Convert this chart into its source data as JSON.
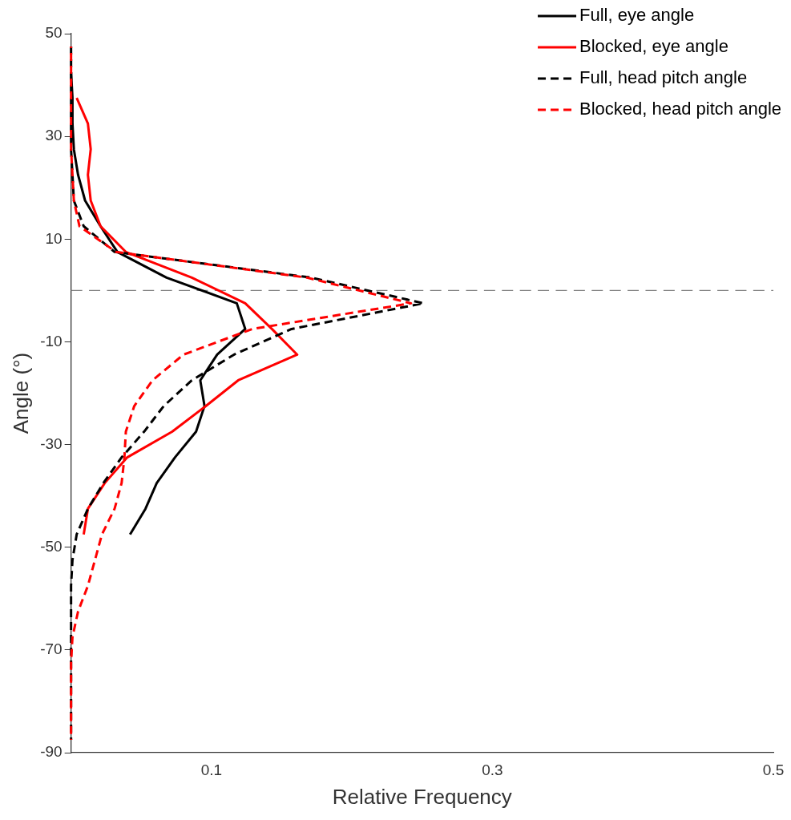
{
  "chart_data": {
    "type": "line",
    "xlabel": "Relative Frequency",
    "ylabel": "Angle (°)",
    "xlim": [
      0,
      0.5
    ],
    "xticks": [
      0.1,
      0.3,
      0.5
    ],
    "ylim": [
      -90,
      50
    ],
    "yticks": [
      -90,
      -70,
      -50,
      -30,
      -10,
      10,
      30,
      50
    ],
    "grid": false,
    "legend": "top right",
    "marker": "none",
    "ref_lines": [
      {
        "axis": "y",
        "value": 0,
        "color": "#808080",
        "line_style": "dashed"
      }
    ],
    "series": [
      {
        "name": "Full, eye angle",
        "color": "#000000",
        "line_style": "solid",
        "x": [
          0,
          0.001,
          0.001,
          0.002,
          0.005,
          0.01,
          0.021,
          0.033,
          0.068,
          0.118,
          0.124,
          0.104,
          0.092,
          0.095,
          0.089,
          0.074,
          0.061,
          0.053,
          0.042
        ],
        "values": [
          42.5,
          37.5,
          32.5,
          27.5,
          22.5,
          17.5,
          12.5,
          7.5,
          2.5,
          -2.5,
          -7.5,
          -12.5,
          -17.5,
          -22.5,
          -27.5,
          -32.5,
          -37.5,
          -42.5,
          -47.5
        ]
      },
      {
        "name": "Blocked, eye angle",
        "color": "#ff0000",
        "line_style": "solid",
        "x": [
          0.004,
          0.012,
          0.014,
          0.012,
          0.014,
          0.021,
          0.039,
          0.086,
          0.124,
          0.143,
          0.161,
          0.119,
          0.096,
          0.072,
          0.04,
          0.024,
          0.012,
          0.009
        ],
        "values": [
          37.5,
          32.5,
          27.5,
          22.5,
          17.5,
          12.5,
          7.5,
          2.5,
          -2.5,
          -7.5,
          -12.5,
          -17.5,
          -22.5,
          -27.5,
          -32.5,
          -37.5,
          -42.5,
          -47.5
        ]
      },
      {
        "name": "Full, head pitch angle",
        "color": "#000000",
        "line_style": "dashed",
        "x": [
          0,
          0,
          0,
          0,
          0,
          0.001,
          0.002,
          0.009,
          0.031,
          0.171,
          0.251,
          0.157,
          0.116,
          0.086,
          0.066,
          0.052,
          0.036,
          0.023,
          0.012,
          0.004,
          0.001,
          0,
          0,
          0,
          0,
          0,
          0,
          0
        ],
        "values": [
          47.5,
          42.5,
          37.5,
          32.5,
          27.5,
          22.5,
          17.5,
          12.5,
          7.5,
          2.5,
          -2.5,
          -7.5,
          -12.5,
          -17.5,
          -22.5,
          -27.5,
          -32.5,
          -37.5,
          -42.5,
          -47.5,
          -52.5,
          -57.5,
          -62.5,
          -67.5,
          -72.5,
          -77.5,
          -82.5,
          -87.5
        ]
      },
      {
        "name": "Blocked, head pitch angle",
        "color": "#ff0000",
        "line_style": "dashed",
        "x": [
          0,
          0,
          0,
          0,
          0,
          0.001,
          0.002,
          0.006,
          0.032,
          0.168,
          0.242,
          0.129,
          0.08,
          0.058,
          0.045,
          0.039,
          0.038,
          0.036,
          0.031,
          0.022,
          0.017,
          0.012,
          0.005,
          0.001,
          0,
          0,
          0,
          0
        ],
        "values": [
          47.5,
          42.5,
          37.5,
          32.5,
          27.5,
          22.5,
          17.5,
          12.5,
          7.5,
          2.5,
          -2.5,
          -7.5,
          -12.5,
          -17.5,
          -22.5,
          -27.5,
          -32.5,
          -37.5,
          -42.5,
          -47.5,
          -52.5,
          -57.5,
          -62.5,
          -67.5,
          -72.5,
          -77.5,
          -82.5,
          -87.5
        ]
      }
    ]
  }
}
